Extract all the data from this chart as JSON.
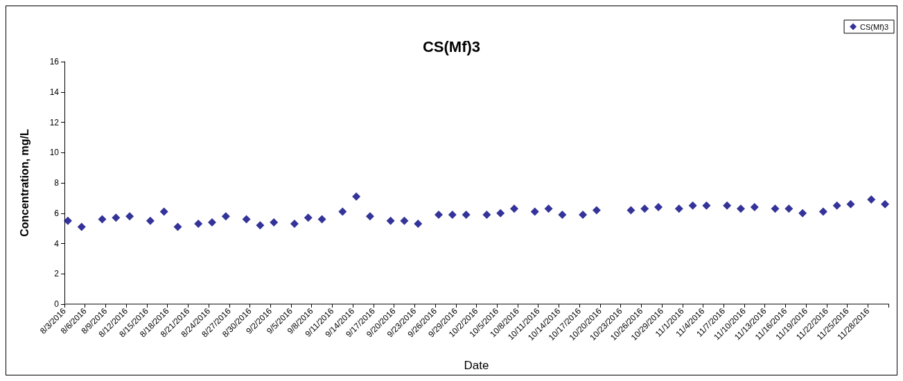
{
  "chart_data": {
    "type": "scatter",
    "title": "CS(Mf)3",
    "xlabel": "Date",
    "ylabel": "Concentration, mg/L",
    "legend": "top right",
    "marker": "diamond",
    "grid": false,
    "xlim": [
      "2016-08-03",
      "2016-12-01"
    ],
    "xticks": [
      {
        "value": "2016-08-03",
        "label": "8/3/2016"
      },
      {
        "value": "2016-08-06",
        "label": "8/6/2016"
      },
      {
        "value": "2016-08-09",
        "label": "8/9/2016"
      },
      {
        "value": "2016-08-12",
        "label": "8/12/2016"
      },
      {
        "value": "2016-08-15",
        "label": "8/15/2016"
      },
      {
        "value": "2016-08-18",
        "label": "8/18/2016"
      },
      {
        "value": "2016-08-21",
        "label": "8/21/2016"
      },
      {
        "value": "2016-08-24",
        "label": "8/24/2016"
      },
      {
        "value": "2016-08-27",
        "label": "8/27/2016"
      },
      {
        "value": "2016-08-30",
        "label": "8/30/2016"
      },
      {
        "value": "2016-09-02",
        "label": "9/2/2016"
      },
      {
        "value": "2016-09-05",
        "label": "9/5/2016"
      },
      {
        "value": "2016-09-08",
        "label": "9/8/2016"
      },
      {
        "value": "2016-09-11",
        "label": "9/11/2016"
      },
      {
        "value": "2016-09-14",
        "label": "9/14/2016"
      },
      {
        "value": "2016-09-17",
        "label": "9/17/2016"
      },
      {
        "value": "2016-09-20",
        "label": "9/20/2016"
      },
      {
        "value": "2016-09-23",
        "label": "9/23/2016"
      },
      {
        "value": "2016-09-26",
        "label": "9/26/2016"
      },
      {
        "value": "2016-09-29",
        "label": "9/29/2016"
      },
      {
        "value": "2016-10-02",
        "label": "10/2/2016"
      },
      {
        "value": "2016-10-05",
        "label": "10/5/2016"
      },
      {
        "value": "2016-10-08",
        "label": "10/8/2016"
      },
      {
        "value": "2016-10-11",
        "label": "10/11/2016"
      },
      {
        "value": "2016-10-14",
        "label": "10/14/2016"
      },
      {
        "value": "2016-10-17",
        "label": "10/17/2016"
      },
      {
        "value": "2016-10-20",
        "label": "10/20/2016"
      },
      {
        "value": "2016-10-23",
        "label": "10/23/2016"
      },
      {
        "value": "2016-10-26",
        "label": "10/26/2016"
      },
      {
        "value": "2016-10-29",
        "label": "10/29/2016"
      },
      {
        "value": "2016-11-01",
        "label": "11/1/2016"
      },
      {
        "value": "2016-11-04",
        "label": "11/4/2016"
      },
      {
        "value": "2016-11-07",
        "label": "11/7/2016"
      },
      {
        "value": "2016-11-10",
        "label": "11/10/2016"
      },
      {
        "value": "2016-11-13",
        "label": "11/13/2016"
      },
      {
        "value": "2016-11-16",
        "label": "11/16/2016"
      },
      {
        "value": "2016-11-19",
        "label": "11/19/2016"
      },
      {
        "value": "2016-11-22",
        "label": "11/22/2016"
      },
      {
        "value": "2016-11-25",
        "label": "11/25/2016"
      },
      {
        "value": "2016-11-28",
        "label": "11/28/2016"
      },
      {
        "value": "2016-12-01",
        "label": null
      }
    ],
    "ylim": [
      0,
      16
    ],
    "yticks": [
      0,
      2,
      4,
      6,
      8,
      10,
      12,
      14,
      16
    ],
    "series": [
      {
        "name": "CS(Mf)3",
        "color": "#000080",
        "x": [
          "2016-08-03T12:00",
          "2016-08-05T12:00",
          "2016-08-08T12:00",
          "2016-08-10T12:00",
          "2016-08-12T12:00",
          "2016-08-15T12:00",
          "2016-08-17T12:00",
          "2016-08-19T12:00",
          "2016-08-22T12:00",
          "2016-08-24T12:00",
          "2016-08-26T12:00",
          "2016-08-29T12:00",
          "2016-08-31T12:00",
          "2016-09-02T12:00",
          "2016-09-05T12:00",
          "2016-09-07T12:00",
          "2016-09-09T12:00",
          "2016-09-12T12:00",
          "2016-09-14T12:00",
          "2016-09-16T12:00",
          "2016-09-19T12:00",
          "2016-09-21T12:00",
          "2016-09-23T12:00",
          "2016-09-26T12:00",
          "2016-09-28T12:00",
          "2016-09-30T12:00",
          "2016-10-03T12:00",
          "2016-10-05T12:00",
          "2016-10-07T12:00",
          "2016-10-10T12:00",
          "2016-10-12T12:00",
          "2016-10-14T12:00",
          "2016-10-17T12:00",
          "2016-10-19T12:00",
          "2016-10-24T12:00",
          "2016-10-26T12:00",
          "2016-10-28T12:00",
          "2016-10-31T12:00",
          "2016-11-02T12:00",
          "2016-11-04T12:00",
          "2016-11-07T12:00",
          "2016-11-09T12:00",
          "2016-11-11T12:00",
          "2016-11-14T12:00",
          "2016-11-16T12:00",
          "2016-11-18T12:00",
          "2016-11-21T12:00",
          "2016-11-23T12:00",
          "2016-11-25T12:00",
          "2016-11-28T12:00",
          "2016-11-30T12:00"
        ],
        "values": [
          5.5,
          5.1,
          5.6,
          5.7,
          5.8,
          5.5,
          6.1,
          5.1,
          5.3,
          5.4,
          5.8,
          5.6,
          5.2,
          5.4,
          5.3,
          5.7,
          5.6,
          6.1,
          7.1,
          5.8,
          5.5,
          5.5,
          5.3,
          5.9,
          5.9,
          5.9,
          5.9,
          6.0,
          6.3,
          6.1,
          6.3,
          5.9,
          5.9,
          6.2,
          6.2,
          6.3,
          6.4,
          6.3,
          6.5,
          6.5,
          6.5,
          6.3,
          6.4,
          6.3,
          6.3,
          6.0,
          6.1,
          6.5,
          6.6,
          6.9,
          6.6
        ]
      }
    ]
  }
}
